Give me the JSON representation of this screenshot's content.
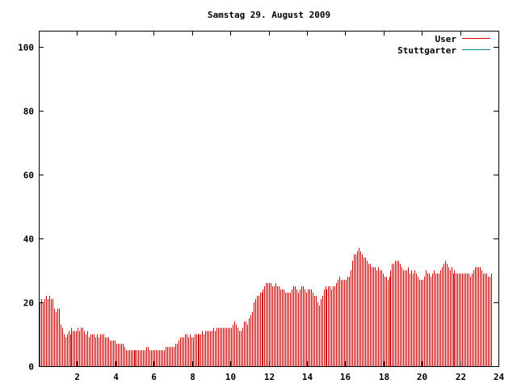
{
  "chart_data": {
    "type": "bar",
    "title": "Samstag 29. August 2009",
    "xlabel": "",
    "ylabel": "",
    "xlim": [
      0,
      24
    ],
    "ylim": [
      0,
      105
    ],
    "x_ticks": [
      "2",
      "4",
      "6",
      "8",
      "10",
      "12",
      "14",
      "16",
      "18",
      "20",
      "22",
      "24"
    ],
    "y_ticks": [
      "0",
      "20",
      "40",
      "60",
      "80",
      "100"
    ],
    "grid": false,
    "legend_position": "top-right",
    "bar_step_hours": 0.0833,
    "series": [
      {
        "name": "User",
        "color": "#cc0000",
        "values": [
          20,
          21,
          20,
          21,
          22,
          21,
          22,
          21,
          21,
          18,
          17,
          18,
          18,
          13,
          12,
          10,
          9,
          10,
          11,
          10,
          12,
          11,
          11,
          11,
          12,
          11,
          12,
          12,
          11,
          10,
          11,
          9,
          10,
          10,
          10,
          9,
          10,
          9,
          10,
          10,
          10,
          9,
          9,
          9,
          8,
          8,
          8,
          8,
          7,
          7,
          7,
          7,
          7,
          6,
          5,
          5,
          5,
          5,
          5,
          5,
          5,
          5,
          5,
          5,
          5,
          5,
          5,
          6,
          6,
          5,
          5,
          5,
          5,
          5,
          5,
          5,
          5,
          5,
          5,
          6,
          6,
          6,
          6,
          6,
          6,
          7,
          7,
          8,
          9,
          9,
          9,
          10,
          10,
          9,
          10,
          9,
          9,
          10,
          10,
          10,
          10,
          10,
          11,
          10,
          11,
          11,
          11,
          11,
          11,
          12,
          11,
          12,
          12,
          12,
          12,
          12,
          12,
          12,
          12,
          12,
          12,
          13,
          14,
          13,
          12,
          11,
          11,
          12,
          14,
          14,
          13,
          15,
          16,
          17,
          20,
          21,
          22,
          22,
          23,
          23,
          24,
          25,
          26,
          26,
          26,
          26,
          25,
          25,
          26,
          25,
          25,
          24,
          24,
          24,
          23,
          23,
          23,
          23,
          24,
          25,
          25,
          24,
          23,
          24,
          25,
          25,
          24,
          23,
          24,
          24,
          24,
          23,
          22,
          22,
          20,
          19,
          21,
          22,
          24,
          25,
          24,
          25,
          25,
          24,
          25,
          25,
          26,
          27,
          28,
          27,
          27,
          27,
          27,
          28,
          28,
          30,
          33,
          35,
          35,
          36,
          37,
          36,
          35,
          34,
          34,
          33,
          32,
          32,
          31,
          31,
          31,
          30,
          31,
          30,
          30,
          29,
          28,
          28,
          27,
          28,
          30,
          32,
          32,
          33,
          33,
          33,
          32,
          31,
          30,
          30,
          30,
          31,
          29,
          30,
          29,
          30,
          29,
          28,
          27,
          27,
          27,
          28,
          30,
          29,
          29,
          28,
          29,
          30,
          29,
          29,
          29,
          30,
          31,
          32,
          33,
          32,
          31,
          30,
          31,
          29,
          30,
          29,
          29,
          29,
          29,
          29,
          29,
          29,
          29,
          29,
          28,
          29,
          30,
          31,
          31,
          31,
          31,
          30,
          29,
          29,
          29,
          28,
          28,
          29
        ]
      },
      {
        "name": "Stuttgarter",
        "color": "#008b8b",
        "values": []
      }
    ]
  }
}
